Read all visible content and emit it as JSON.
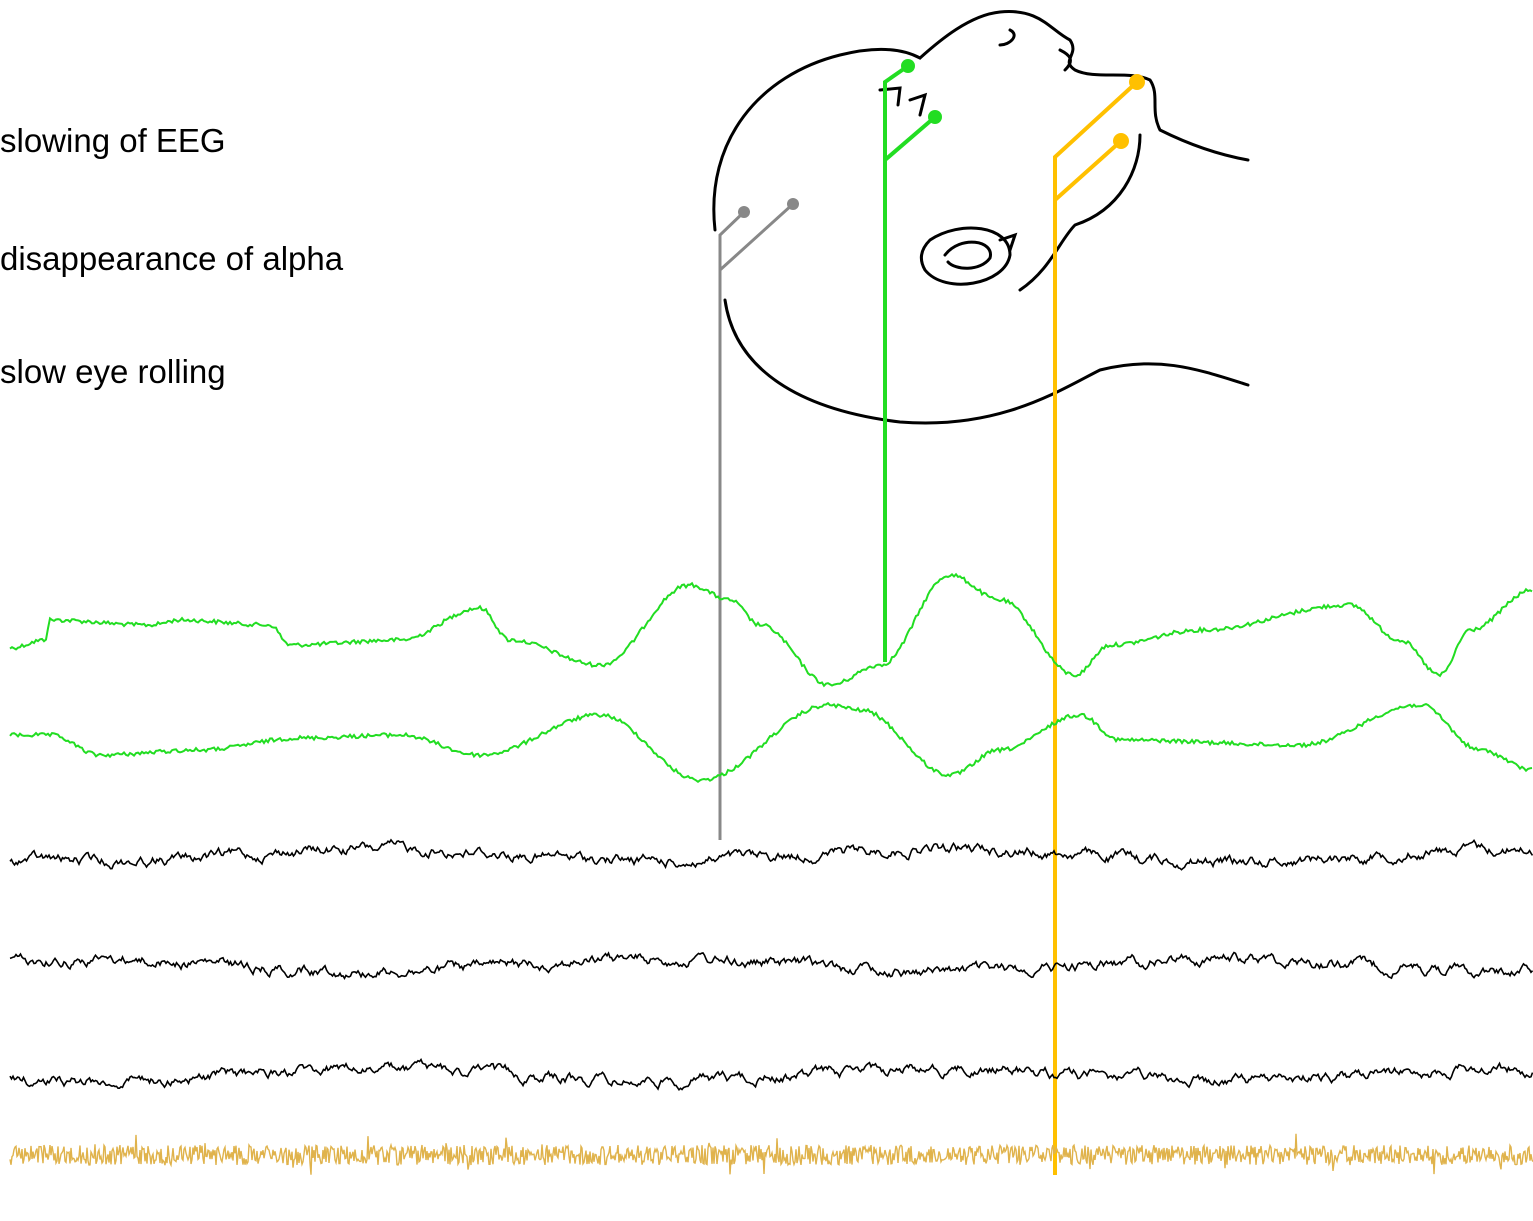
{
  "notes": [
    "slowing of EEG",
    "disappearance of alpha",
    "slow eye rolling"
  ]
}
